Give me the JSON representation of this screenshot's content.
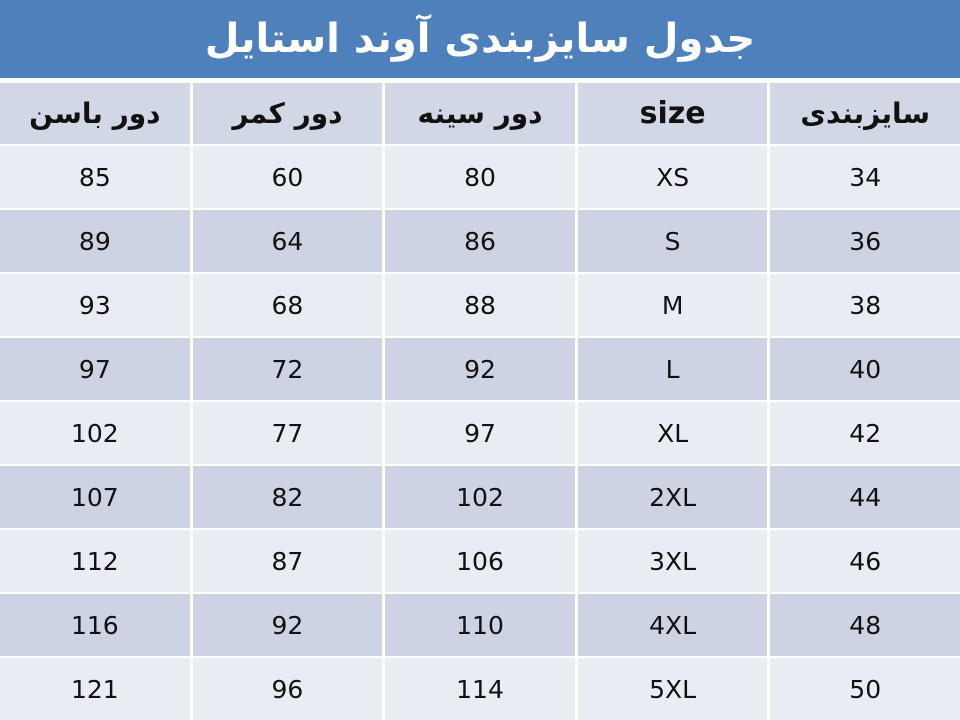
{
  "title": "جدول سایزبندی آوند استایل",
  "colors": {
    "title_bg": "#4E80BC",
    "title_text": "#FFFFFF",
    "header_bg": "#D2D7E5",
    "row_odd_bg": "#EAECF4",
    "row_even_bg": "#CDD3E3",
    "grid_line": "#FFFFFF",
    "cell_text": "#111111"
  },
  "table": {
    "columns": [
      {
        "key": "sizing",
        "label": "سایزبندی",
        "latin": false
      },
      {
        "key": "size",
        "label": "size",
        "latin": true
      },
      {
        "key": "chest",
        "label": "دور سینه",
        "latin": false
      },
      {
        "key": "waist",
        "label": "دور کمر",
        "latin": false
      },
      {
        "key": "hip",
        "label": "دور باسن",
        "latin": false
      }
    ],
    "rows": [
      {
        "sizing": "34",
        "size": "XS",
        "chest": "80",
        "waist": "60",
        "hip": "85"
      },
      {
        "sizing": "36",
        "size": "S",
        "chest": "86",
        "waist": "64",
        "hip": "89"
      },
      {
        "sizing": "38",
        "size": "M",
        "chest": "88",
        "waist": "68",
        "hip": "93"
      },
      {
        "sizing": "40",
        "size": "L",
        "chest": "92",
        "waist": "72",
        "hip": "97"
      },
      {
        "sizing": "42",
        "size": "XL",
        "chest": "97",
        "waist": "77",
        "hip": "102"
      },
      {
        "sizing": "44",
        "size": "2XL",
        "chest": "102",
        "waist": "82",
        "hip": "107"
      },
      {
        "sizing": "46",
        "size": "3XL",
        "chest": "106",
        "waist": "87",
        "hip": "112"
      },
      {
        "sizing": "48",
        "size": "4XL",
        "chest": "110",
        "waist": "92",
        "hip": "116"
      },
      {
        "sizing": "50",
        "size": "5XL",
        "chest": "114",
        "waist": "96",
        "hip": "121"
      }
    ]
  }
}
